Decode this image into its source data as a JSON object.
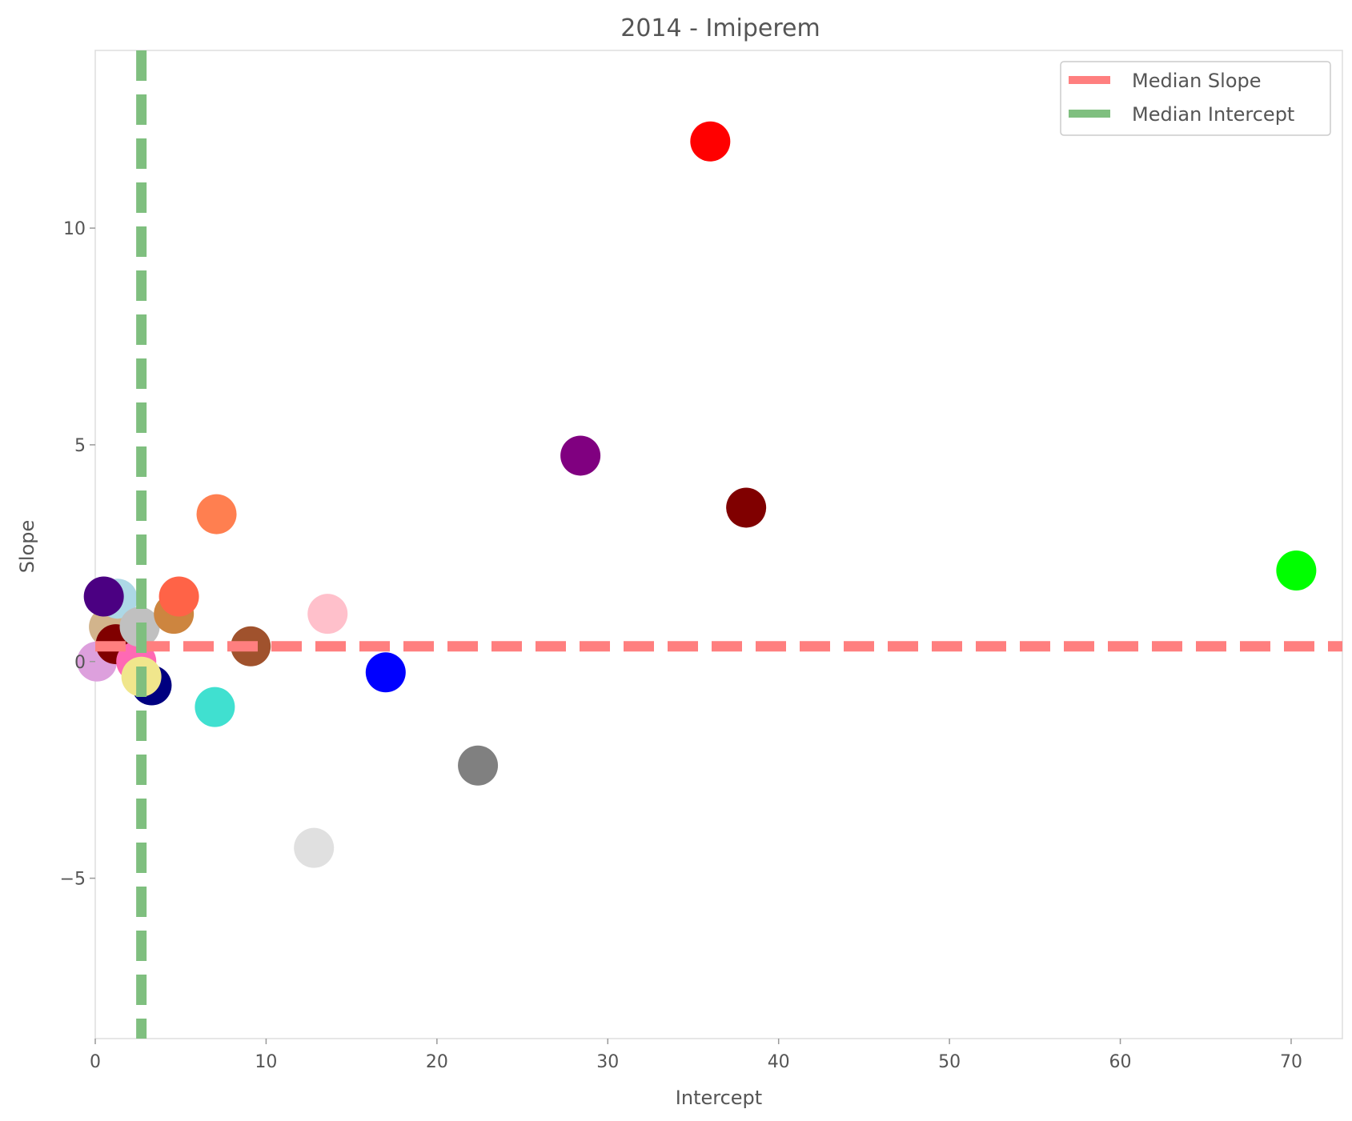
{
  "chart_data": {
    "type": "scatter",
    "title": "2014 - Imiperem",
    "xlabel": "Intercept",
    "ylabel": "Slope",
    "xlim": [
      0,
      73
    ],
    "ylim": [
      -8.7,
      14.1
    ],
    "x_ticks": [
      0,
      10,
      20,
      30,
      40,
      50,
      60,
      70
    ],
    "y_ticks": [
      -5,
      0,
      5,
      10
    ],
    "x_tick_labels": [
      "0",
      "10",
      "20",
      "30",
      "40",
      "50",
      "60",
      "70"
    ],
    "y_tick_labels": [
      "−5",
      "0",
      "5",
      "10"
    ],
    "grid": false,
    "legend": {
      "position": "top-right",
      "entries": [
        {
          "label": "Median Slope",
          "color": "#ff7f7f"
        },
        {
          "label": "Median Intercept",
          "color": "#7fbf7f"
        }
      ]
    },
    "reference_lines": [
      {
        "orientation": "horizontal",
        "value": 0.35,
        "color": "#ff7f7f",
        "style": "dashed"
      },
      {
        "orientation": "vertical",
        "value": 2.7,
        "color": "#7fbf7f",
        "style": "dashed"
      }
    ],
    "points": [
      {
        "x": 0.1,
        "y": 0.0,
        "color": "#dda0dd"
      },
      {
        "x": 0.8,
        "y": 0.8,
        "color": "#d2b48c"
      },
      {
        "x": 1.2,
        "y": 0.4,
        "color": "#800000"
      },
      {
        "x": 1.3,
        "y": 1.45,
        "color": "#add8e6"
      },
      {
        "x": 0.5,
        "y": 1.5,
        "color": "#4b0082"
      },
      {
        "x": 2.4,
        "y": 0.0,
        "color": "#ff69b4"
      },
      {
        "x": 3.3,
        "y": -0.55,
        "color": "#000080"
      },
      {
        "x": 2.7,
        "y": -0.35,
        "color": "#f0e68c"
      },
      {
        "x": 2.6,
        "y": 0.8,
        "color": "#c0c0c0"
      },
      {
        "x": 4.6,
        "y": 1.1,
        "color": "#cd853f"
      },
      {
        "x": 4.9,
        "y": 1.5,
        "color": "#ff6347"
      },
      {
        "x": 7.1,
        "y": 3.4,
        "color": "#ff7f50"
      },
      {
        "x": 7.0,
        "y": -1.05,
        "color": "#40e0d0"
      },
      {
        "x": 9.1,
        "y": 0.35,
        "color": "#a0522d"
      },
      {
        "x": 13.6,
        "y": 1.1,
        "color": "#ffc0cb"
      },
      {
        "x": 12.8,
        "y": -4.3,
        "color": "#e0e0e0"
      },
      {
        "x": 17.0,
        "y": -0.25,
        "color": "#0000ff"
      },
      {
        "x": 22.4,
        "y": -2.4,
        "color": "#808080"
      },
      {
        "x": 28.4,
        "y": 4.75,
        "color": "#800080"
      },
      {
        "x": 36.0,
        "y": 12.0,
        "color": "#ff0000"
      },
      {
        "x": 38.1,
        "y": 3.55,
        "color": "#800000"
      },
      {
        "x": 70.3,
        "y": 2.1,
        "color": "#00ff00"
      }
    ]
  }
}
